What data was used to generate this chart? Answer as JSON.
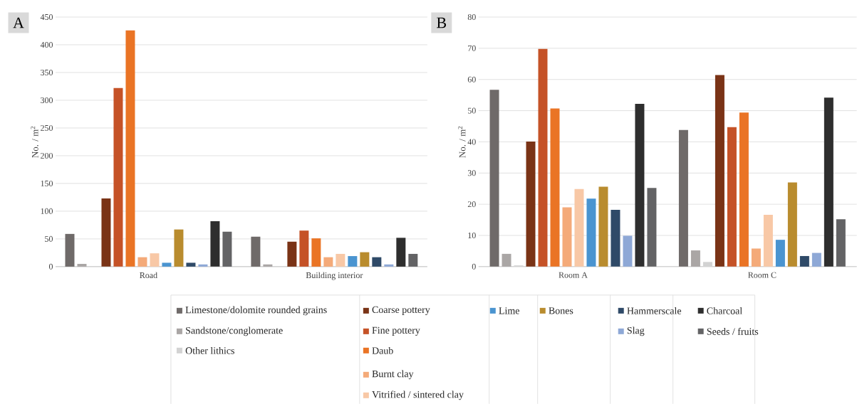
{
  "chart_data": [
    {
      "type": "bar",
      "title": "A",
      "ylabel": "No. / m$^{2}$",
      "categories": [
        "Road",
        "Building interior"
      ],
      "ylim": [
        0,
        450
      ],
      "yticks": [
        0,
        50,
        100,
        150,
        200,
        250,
        300,
        350,
        400,
        450
      ],
      "grid": "y",
      "legend": "bottom",
      "series": [
        {
          "name": "Limestone/dolomite rounded grains",
          "color": "#6f6a69",
          "values": [
            59,
            54
          ]
        },
        {
          "name": "Sandstone/conglomerate",
          "color": "#aaa6a5",
          "values": [
            5,
            4
          ]
        },
        {
          "name": "Other lithics",
          "color": "#d3d3d3",
          "values": [
            1,
            0
          ]
        },
        {
          "name": "Coarse pottery",
          "color": "#7a3316",
          "values": [
            123,
            45
          ]
        },
        {
          "name": "Fine pottery",
          "color": "#c55227",
          "values": [
            322,
            65
          ]
        },
        {
          "name": "Daub",
          "color": "#ea7425",
          "values": [
            426,
            51
          ]
        },
        {
          "name": "Burnt clay",
          "color": "#f4aa79",
          "values": [
            17,
            17
          ]
        },
        {
          "name": "Vitrified / sintered clay",
          "color": "#f8c8a6",
          "values": [
            24,
            23
          ]
        },
        {
          "name": "Lime",
          "color": "#4a94d0",
          "values": [
            7,
            19
          ]
        },
        {
          "name": "Bones",
          "color": "#b98c2e",
          "values": [
            67,
            26
          ]
        },
        {
          "name": "Hammerscale",
          "color": "#2f4a68",
          "values": [
            7,
            17
          ]
        },
        {
          "name": "Slag",
          "color": "#8ea8d6",
          "values": [
            4,
            4
          ]
        },
        {
          "name": "Charcoal",
          "color": "#2e2e2e",
          "values": [
            82,
            52
          ]
        },
        {
          "name": "Seeds / fruits",
          "color": "#636365",
          "values": [
            63,
            23
          ]
        }
      ]
    },
    {
      "type": "bar",
      "title": "B",
      "ylabel": "No. / m$^{2}$",
      "categories": [
        "Room A",
        "Room C"
      ],
      "ylim": [
        0,
        80
      ],
      "yticks": [
        0,
        10,
        20,
        30,
        40,
        50,
        60,
        70,
        80
      ],
      "grid": "y",
      "series": [
        {
          "color": "#6f6a69",
          "values": [
            56.7,
            43.8
          ]
        },
        {
          "color": "#aaa6a5",
          "values": [
            4.1,
            5.2
          ]
        },
        {
          "color": "#d3d3d3",
          "values": [
            0.4,
            1.5
          ]
        },
        {
          "color": "#7a3316",
          "values": [
            40.1,
            61.4
          ]
        },
        {
          "color": "#c55227",
          "values": [
            69.8,
            44.7
          ]
        },
        {
          "color": "#ea7425",
          "values": [
            50.7,
            49.4
          ]
        },
        {
          "color": "#f4aa79",
          "values": [
            19.0,
            5.8
          ]
        },
        {
          "color": "#f8c8a6",
          "values": [
            24.9,
            16.6
          ]
        },
        {
          "color": "#4a94d0",
          "values": [
            21.8,
            8.6
          ]
        },
        {
          "color": "#b98c2e",
          "values": [
            25.6,
            27.0
          ]
        },
        {
          "color": "#2f4a68",
          "values": [
            18.2,
            3.4
          ]
        },
        {
          "color": "#8ea8d6",
          "values": [
            9.9,
            4.4
          ]
        },
        {
          "color": "#2e2e2e",
          "values": [
            52.2,
            54.2
          ]
        },
        {
          "color": "#636365",
          "values": [
            25.2,
            15.2
          ]
        }
      ]
    }
  ]
}
